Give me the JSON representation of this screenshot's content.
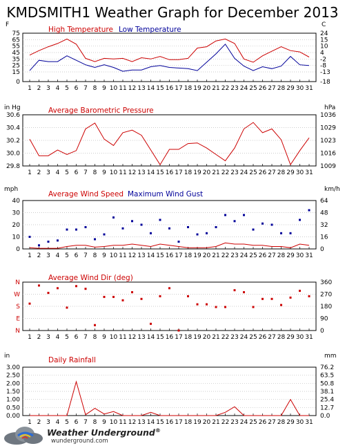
{
  "page": {
    "title": "KMDSMITH1 Weather Graph for December 2013"
  },
  "days": [
    "1",
    "2",
    "3",
    "4",
    "5",
    "6",
    "7",
    "8",
    "9",
    "10",
    "11",
    "12",
    "13",
    "14",
    "15",
    "16",
    "17",
    "18",
    "19",
    "20",
    "21",
    "22",
    "23",
    "24",
    "25",
    "26",
    "27",
    "28",
    "29",
    "30",
    "31"
  ],
  "chart_data": [
    {
      "type": "line",
      "title": "",
      "left_unit": "F",
      "right_unit": "C",
      "ylim": [
        0,
        75
      ],
      "left_ticks": [
        "75",
        "65",
        "55",
        "45",
        "35",
        "25",
        "15",
        "0"
      ],
      "right_ticks": [
        "24",
        "15",
        "10",
        "4",
        "-2",
        "-8",
        "-13",
        "-18"
      ],
      "series": [
        {
          "name": "High Temperature",
          "color": "#cc0000",
          "values": [
            41,
            48,
            54,
            59,
            66,
            58,
            36,
            31,
            36,
            35,
            36,
            31,
            37,
            35,
            39,
            34,
            34,
            36,
            52,
            54,
            63,
            66,
            59,
            35,
            30,
            40,
            47,
            54,
            48,
            46,
            38
          ]
        },
        {
          "name": "Low Temperature",
          "color": "#000099",
          "values": [
            17,
            33,
            31,
            31,
            40,
            33,
            26,
            22,
            26,
            22,
            16,
            18,
            18,
            23,
            25,
            22,
            21,
            20,
            17,
            30,
            43,
            58,
            36,
            24,
            17,
            23,
            20,
            24,
            39,
            26,
            25
          ]
        }
      ]
    },
    {
      "type": "line",
      "title": "Average Barometric Pressure",
      "left_unit": "in Hg",
      "right_unit": "hPa",
      "ylim": [
        29.8,
        30.6
      ],
      "left_ticks": [
        "30.6",
        "30.4",
        "30.2",
        "30.0",
        "29.8"
      ],
      "right_ticks": [
        "1036",
        "1029",
        "1023",
        "1016",
        "1009"
      ],
      "series": [
        {
          "name": "Average Barometric Pressure",
          "color": "#cc0000",
          "values": [
            30.22,
            29.96,
            29.96,
            30.05,
            29.98,
            30.04,
            30.38,
            30.47,
            30.22,
            30.12,
            30.32,
            30.36,
            30.28,
            30.05,
            29.82,
            30.06,
            30.06,
            30.15,
            30.16,
            30.08,
            29.98,
            29.88,
            30.08,
            30.38,
            30.48,
            30.32,
            30.38,
            30.21,
            29.82,
            30.04,
            30.24
          ]
        }
      ]
    },
    {
      "type": "line",
      "title": "",
      "left_unit": "mph",
      "right_unit": "km/h",
      "ylim": [
        0,
        40
      ],
      "left_ticks": [
        "40",
        "30",
        "20",
        "10",
        "0"
      ],
      "right_ticks": [
        "64",
        "48",
        "32",
        "16",
        "0"
      ],
      "series": [
        {
          "name": "Average Wind Speed",
          "color": "#cc0000",
          "style": "line",
          "values": [
            1,
            0.5,
            0.5,
            0.5,
            2,
            3,
            3,
            1.5,
            2,
            3,
            3,
            4,
            3,
            2,
            4,
            3,
            2,
            1,
            1,
            1,
            2,
            5,
            4,
            4,
            3,
            3,
            2,
            2,
            1,
            4,
            3
          ]
        },
        {
          "name": "Maximum Wind Gust",
          "color": "#000099",
          "style": "points",
          "values": [
            10,
            3,
            6,
            7,
            16,
            16,
            18,
            8,
            12,
            26,
            17,
            23,
            20,
            13,
            24,
            17,
            6,
            18,
            12,
            13,
            18,
            28,
            23,
            28,
            16,
            21,
            20,
            13,
            13,
            24,
            32
          ]
        }
      ]
    },
    {
      "type": "scatter",
      "title": "Average Wind Dir (deg)",
      "right_unit": "",
      "ylim": [
        0,
        360
      ],
      "left_ticks": [
        "N",
        "W",
        "S",
        "E",
        "N"
      ],
      "right_ticks": [
        "360",
        "270",
        "180",
        "90",
        "0"
      ],
      "series": [
        {
          "name": "Average Wind Dir (deg)",
          "color": "#cc0000",
          "values": [
            200,
            335,
            280,
            315,
            170,
            330,
            310,
            40,
            250,
            250,
            225,
            285,
            235,
            50,
            255,
            315,
            0,
            255,
            195,
            195,
            175,
            175,
            300,
            285,
            175,
            235,
            235,
            190,
            245,
            295,
            255
          ]
        }
      ]
    },
    {
      "type": "line",
      "title": "Daily Rainfall",
      "left_unit": "in",
      "right_unit": "mm",
      "ylim": [
        0,
        3
      ],
      "left_ticks": [
        "3.00",
        "2.50",
        "2.00",
        "1.50",
        "1.00",
        "0.50",
        "0.00"
      ],
      "right_ticks": [
        "76.2",
        "63.5",
        "50.8",
        "38.1",
        "25.4",
        "12.7",
        "0.0"
      ],
      "series": [
        {
          "name": "Daily Rainfall",
          "color": "#cc0000",
          "values": [
            0,
            0,
            0,
            0,
            0,
            2.1,
            0.05,
            0.45,
            0.1,
            0.25,
            0,
            0,
            0,
            0.2,
            0,
            0,
            0,
            0,
            0,
            0,
            0,
            0.2,
            0.55,
            0,
            0,
            0,
            0,
            0,
            1.0,
            0,
            0
          ]
        }
      ]
    }
  ],
  "logo": {
    "name": "Weather Underground",
    "reg": "®",
    "url": "wunderground.com"
  }
}
